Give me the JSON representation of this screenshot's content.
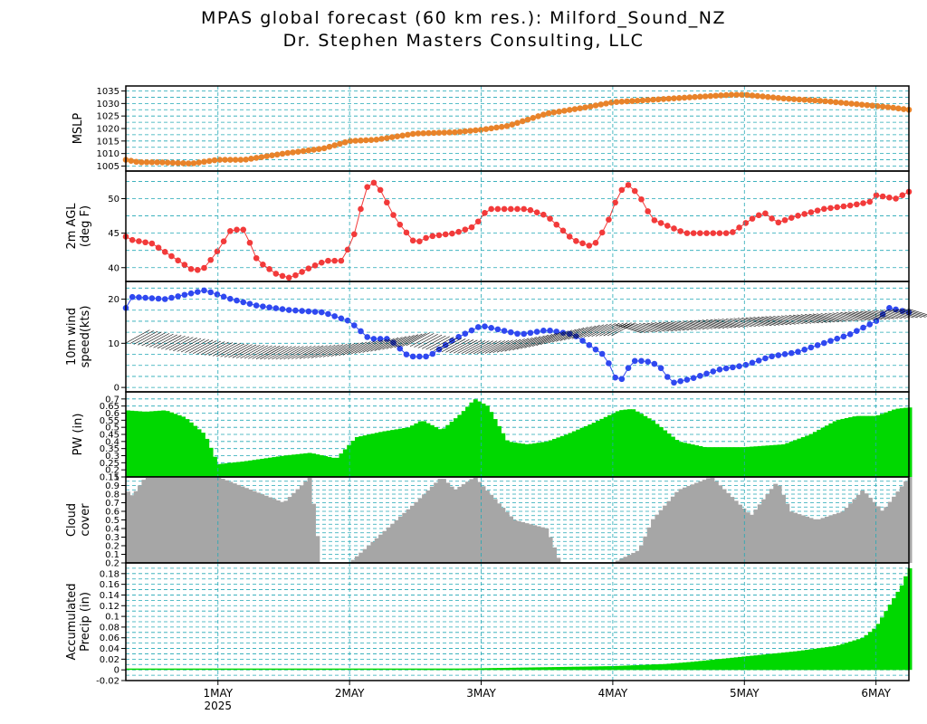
{
  "title": "MPAS global forecast (60 km res.): Milford_Sound_NZ",
  "subtitle": "Dr. Stephen Masters Consulting, LLC",
  "x_ticks": [
    {
      "label": "1MAY",
      "day": 1
    },
    {
      "label": "2MAY",
      "day": 2
    },
    {
      "label": "3MAY",
      "day": 3
    },
    {
      "label": "4MAY",
      "day": 4
    },
    {
      "label": "5MAY",
      "day": 5
    },
    {
      "label": "6MAY",
      "day": 6
    }
  ],
  "x_year_label": "2025",
  "colors": {
    "grid": "#22a8b5",
    "mslp": "#e8832a",
    "temp": "#f23a3a",
    "wind": "#2f48f0",
    "pw": "#00d800",
    "cloud": "#a6a6a6",
    "precip": "#00d800"
  },
  "chart_data": [
    {
      "type": "line",
      "ylabel": "MSLP",
      "ylim": [
        1003,
        1037
      ],
      "y_ticks": [
        1005,
        1010,
        1015,
        1020,
        1025,
        1030,
        1035
      ],
      "grid_step": 2.5,
      "xlim_days": [
        0.3,
        6.25
      ],
      "x": [
        0.3,
        0.4,
        0.55,
        0.8,
        1.0,
        1.2,
        1.5,
        1.8,
        2.0,
        2.2,
        2.5,
        2.8,
        3.0,
        3.2,
        3.5,
        3.8,
        4.0,
        4.3,
        4.6,
        4.9,
        5.0,
        5.3,
        5.6,
        5.9,
        6.1,
        6.25
      ],
      "values": [
        1007.5,
        1006.5,
        1006.5,
        1006,
        1007.5,
        1007.5,
        1010,
        1012,
        1015,
        1015.5,
        1018,
        1018.5,
        1019.5,
        1021,
        1026,
        1028.5,
        1030.5,
        1031.5,
        1032.5,
        1033.5,
        1033.5,
        1032,
        1031,
        1029.5,
        1028.5,
        1027.5
      ]
    },
    {
      "type": "line",
      "ylabel": [
        "2m AGL",
        "(deg F)"
      ],
      "ylim": [
        38,
        54
      ],
      "y_ticks": [
        40,
        45,
        50
      ],
      "grid_step": 2.5,
      "xlim_days": [
        0.3,
        6.25
      ],
      "x": [
        0.3,
        0.35,
        0.5,
        0.7,
        0.82,
        0.9,
        1.0,
        1.1,
        1.2,
        1.3,
        1.45,
        1.55,
        1.7,
        1.82,
        1.95,
        2.05,
        2.12,
        2.2,
        2.35,
        2.5,
        2.6,
        2.8,
        2.95,
        3.05,
        3.2,
        3.35,
        3.5,
        3.7,
        3.85,
        3.95,
        4.05,
        4.12,
        4.2,
        4.3,
        4.55,
        4.7,
        4.9,
        5.05,
        5.15,
        5.25,
        5.4,
        5.6,
        5.8,
        5.95,
        6.0,
        6.15,
        6.25
      ],
      "values": [
        44.5,
        44,
        43.5,
        41,
        39.5,
        40,
        42.5,
        45.5,
        45.5,
        41,
        39,
        38.5,
        40,
        41,
        41,
        45.5,
        51.5,
        52.5,
        47,
        43.5,
        44.5,
        45,
        46,
        48.5,
        48.5,
        48.5,
        47.5,
        44,
        43,
        46,
        51,
        52,
        50.5,
        47,
        45,
        45,
        45,
        47,
        48,
        46.5,
        47.5,
        48.5,
        49,
        49.5,
        50.5,
        50,
        51
      ]
    },
    {
      "type": "line",
      "ylabel": [
        "10m wind",
        "speed(kts)"
      ],
      "ylim": [
        -1,
        24
      ],
      "y_ticks": [
        0,
        10,
        20
      ],
      "grid_step": 2.5,
      "xlim_days": [
        0.3,
        6.25
      ],
      "x": [
        0.3,
        0.35,
        0.6,
        0.9,
        1.1,
        1.3,
        1.55,
        1.8,
        2.0,
        2.15,
        2.3,
        2.45,
        2.6,
        2.8,
        3.0,
        3.3,
        3.5,
        3.7,
        3.85,
        3.95,
        4.0,
        4.05,
        4.15,
        4.25,
        4.35,
        4.45,
        4.6,
        4.8,
        5.0,
        5.2,
        5.4,
        5.6,
        5.8,
        6.0,
        6.1,
        6.25
      ],
      "values": [
        18,
        20.5,
        20,
        22,
        20,
        18.5,
        17.5,
        17,
        15,
        11,
        11,
        7,
        7,
        11,
        14,
        12,
        13,
        12,
        9,
        7,
        3,
        1,
        6,
        6,
        5,
        1,
        2,
        4,
        5,
        7,
        8,
        10,
        12,
        15,
        18,
        17
      ]
    },
    {
      "type": "bar",
      "ylabel": "PW (in)",
      "ylim": [
        0.15,
        0.75
      ],
      "y_ticks": [
        0.15,
        0.2,
        0.25,
        0.3,
        0.35,
        0.4,
        0.45,
        0.5,
        0.55,
        0.6,
        0.65,
        0.7
      ],
      "grid_step": 0.05,
      "xlim_days": [
        0.3,
        6.25
      ],
      "x": [
        0.3,
        0.45,
        0.6,
        0.75,
        0.9,
        1.0,
        1.2,
        1.5,
        1.7,
        1.9,
        2.05,
        2.25,
        2.45,
        2.55,
        2.7,
        2.85,
        2.95,
        3.05,
        3.2,
        3.35,
        3.5,
        3.65,
        3.85,
        4.05,
        4.15,
        4.3,
        4.5,
        4.7,
        5.0,
        5.3,
        5.5,
        5.7,
        5.85,
        6.0,
        6.15,
        6.25
      ],
      "values": [
        0.62,
        0.61,
        0.62,
        0.57,
        0.45,
        0.24,
        0.26,
        0.3,
        0.32,
        0.28,
        0.43,
        0.47,
        0.5,
        0.55,
        0.48,
        0.6,
        0.7,
        0.65,
        0.4,
        0.38,
        0.4,
        0.45,
        0.53,
        0.62,
        0.63,
        0.55,
        0.4,
        0.36,
        0.36,
        0.38,
        0.45,
        0.55,
        0.58,
        0.58,
        0.63,
        0.64
      ]
    },
    {
      "type": "bar",
      "ylabel": [
        "Cloud",
        "cover"
      ],
      "ylim": [
        0,
        1
      ],
      "y_ticks": [
        0.1,
        0.2,
        0.3,
        0.4,
        0.5,
        0.6,
        0.7,
        0.8,
        0.9,
        1
      ],
      "grid_step": 0.05,
      "xlim_days": [
        0.3,
        6.25
      ],
      "x": [
        0.3,
        0.35,
        0.45,
        1.0,
        1.5,
        1.7,
        1.78,
        2.0,
        2.5,
        2.7,
        2.8,
        2.95,
        3.1,
        3.25,
        3.5,
        3.6,
        4.0,
        4.2,
        4.3,
        4.5,
        4.75,
        5.05,
        5.25,
        5.35,
        5.55,
        5.75,
        5.9,
        6.05,
        6.25
      ],
      "values": [
        0.85,
        0.78,
        1,
        1,
        0.7,
        1,
        0,
        0,
        0.7,
        1,
        0.85,
        1,
        0.75,
        0.5,
        0.4,
        0,
        0,
        0.15,
        0.5,
        0.85,
        1,
        0.55,
        0.95,
        0.6,
        0.5,
        0.6,
        0.85,
        0.6,
        1
      ]
    },
    {
      "type": "bar",
      "ylabel": [
        "Accumulated",
        "Precip (in)"
      ],
      "ylim": [
        -0.02,
        0.2
      ],
      "y_ticks": [
        -0.02,
        0,
        0.02,
        0.04,
        0.06,
        0.08,
        0.1,
        0.12,
        0.14,
        0.16,
        0.18,
        0.2
      ],
      "grid_step": 0.01,
      "xlim_days": [
        0.3,
        6.25
      ],
      "x": [
        0.3,
        2.5,
        3.0,
        4.0,
        4.4,
        4.6,
        5.0,
        5.4,
        5.7,
        5.9,
        6.0,
        6.1,
        6.2,
        6.25
      ],
      "values": [
        0,
        0,
        0.003,
        0.007,
        0.011,
        0.015,
        0.025,
        0.035,
        0.045,
        0.06,
        0.08,
        0.12,
        0.16,
        0.19
      ]
    }
  ]
}
